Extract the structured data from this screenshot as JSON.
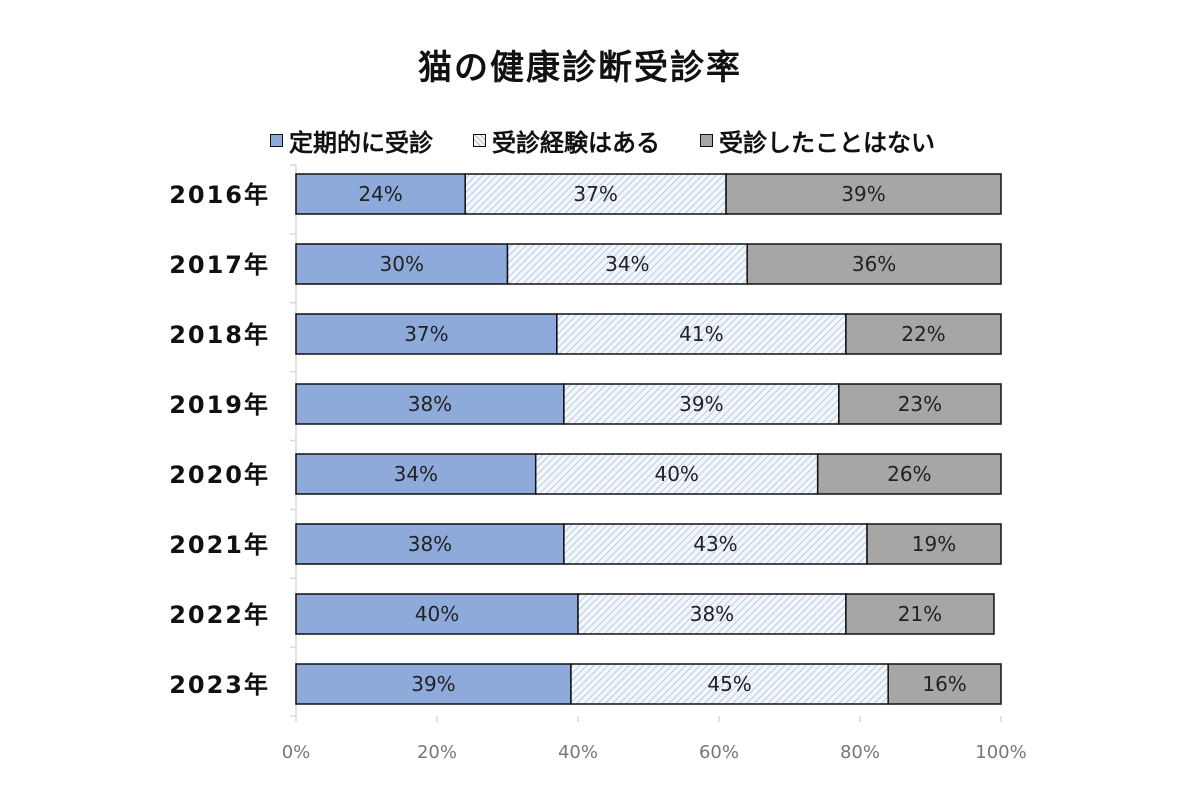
{
  "chart_data": {
    "type": "bar",
    "orientation": "horizontal",
    "stacked": true,
    "title": "猫の健康診断受診率",
    "categories": [
      "2016年",
      "2017年",
      "2018年",
      "2019年",
      "2020年",
      "2021年",
      "2022年",
      "2023年"
    ],
    "series": [
      {
        "name": "定期的に受診",
        "values": [
          24,
          30,
          37,
          38,
          34,
          38,
          40,
          39
        ],
        "color": "#8eaadb",
        "pattern": "solid"
      },
      {
        "name": "受診経験はある",
        "values": [
          37,
          34,
          41,
          39,
          40,
          43,
          38,
          45
        ],
        "color": "#a8bfe3",
        "pattern": "diagonal-hatch"
      },
      {
        "name": "受診したことはない",
        "values": [
          39,
          36,
          22,
          23,
          26,
          19,
          21,
          16
        ],
        "color": "#a6a6a6",
        "pattern": "solid"
      }
    ],
    "value_suffix": "%",
    "xlim": [
      0,
      100
    ],
    "xticks": [
      "0%",
      "20%",
      "40%",
      "60%",
      "80%",
      "100%"
    ],
    "xlabel": "",
    "ylabel": "",
    "grid": false,
    "legend_position": "top"
  }
}
